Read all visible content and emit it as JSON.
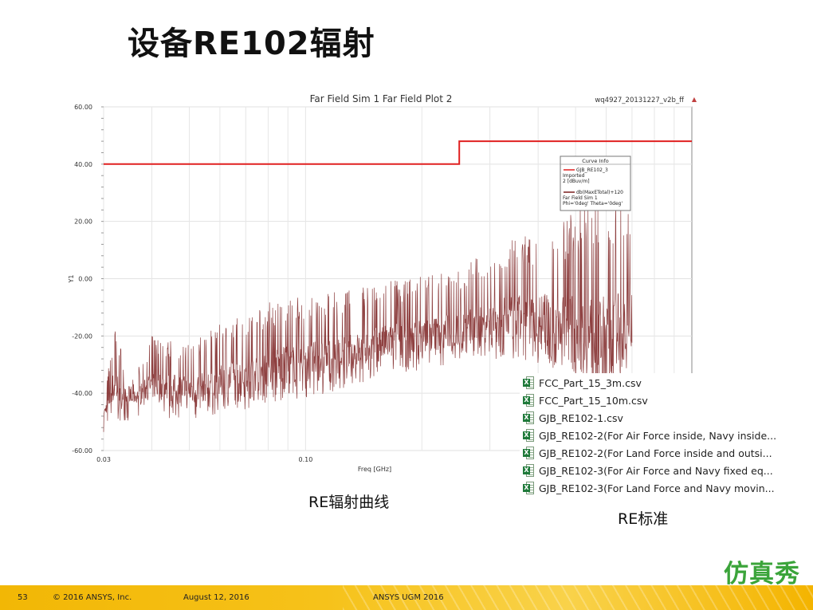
{
  "slide": {
    "title": "设备RE102辐射",
    "caption_left": "RE辐射曲线",
    "caption_right": "RE标准",
    "logo_text": "仿真秀"
  },
  "plot": {
    "title": "Far Field Sim 1 Far Field Plot 2",
    "project": "wq4927_20131227_v2b_ff",
    "curve_info": {
      "header": "Curve Info",
      "entries": [
        {
          "name": "GJB_RE102_3",
          "lines": [
            "Imported",
            "2 [dBuv/m]"
          ],
          "color": "#e02020"
        },
        {
          "name": "db(MaxETotal)+120",
          "lines": [
            "Far Field Sim 1",
            "Phi='0deg' Theta='0deg'"
          ],
          "color": "#7a1e1e"
        }
      ]
    }
  },
  "chart_data": {
    "type": "line",
    "title": "Far Field Sim 1 Far Field Plot 2",
    "xlabel": "Freq [GHz]",
    "ylabel": "Y1",
    "xscale": "log",
    "xlim": [
      0.03,
      1.0
    ],
    "ylim": [
      -60,
      60
    ],
    "x_tick_labels": [
      "0.03",
      "0.10"
    ],
    "y_tick_labels": [
      "60.00",
      "40.00",
      "20.00",
      "0.00",
      "-20.00",
      "-40.00",
      "-60.00"
    ],
    "grid": true,
    "legend": "top-right",
    "series": [
      {
        "name": "GJB_RE102_3",
        "color": "#e02020",
        "x": [
          0.03,
          0.25,
          0.25,
          1.0
        ],
        "y": [
          40,
          40,
          48,
          48
        ]
      },
      {
        "name": "db(MaxETotal)+120",
        "color": "#7a1e1e",
        "envelope_x": [
          0.03,
          0.032,
          0.035,
          0.04,
          0.05,
          0.06,
          0.08,
          0.1,
          0.13,
          0.17,
          0.2,
          0.25,
          0.3,
          0.35,
          0.4,
          0.45,
          0.5,
          0.55,
          0.6,
          0.7
        ],
        "peaks": [
          -45,
          -14,
          -38,
          -20,
          -22,
          -16,
          -8,
          -6,
          -4,
          0,
          1,
          4,
          10,
          14,
          18,
          20,
          24,
          32,
          28,
          24
        ],
        "floors": [
          -48,
          -44,
          -44,
          -42,
          -44,
          -42,
          -38,
          -36,
          -32,
          -28,
          -26,
          -24,
          -22,
          -22,
          -24,
          -26,
          -30,
          -36,
          -34,
          -24
        ]
      }
    ]
  },
  "files": [
    "FCC_Part_15_3m.csv",
    "FCC_Part_15_10m.csv",
    "GJB_RE102-1.csv",
    "GJB_RE102-2(For Air Force inside, Navy inside...",
    "GJB_RE102-2(For Land Force inside and outsi...",
    "GJB_RE102-3(For Air Force and Navy fixed eq...",
    "GJB_RE102-3(For Land Force and Navy movin..."
  ],
  "footer": {
    "page": "53",
    "copyright": "© 2016 ANSYS, Inc.",
    "date": "August 12, 2016",
    "event": "ANSYS UGM 2016"
  },
  "colors": {
    "limit_line": "#e02020",
    "emission_curve": "#7a1e1e",
    "logo": "#3ba43a",
    "footer_bar": "#f6c21a"
  }
}
